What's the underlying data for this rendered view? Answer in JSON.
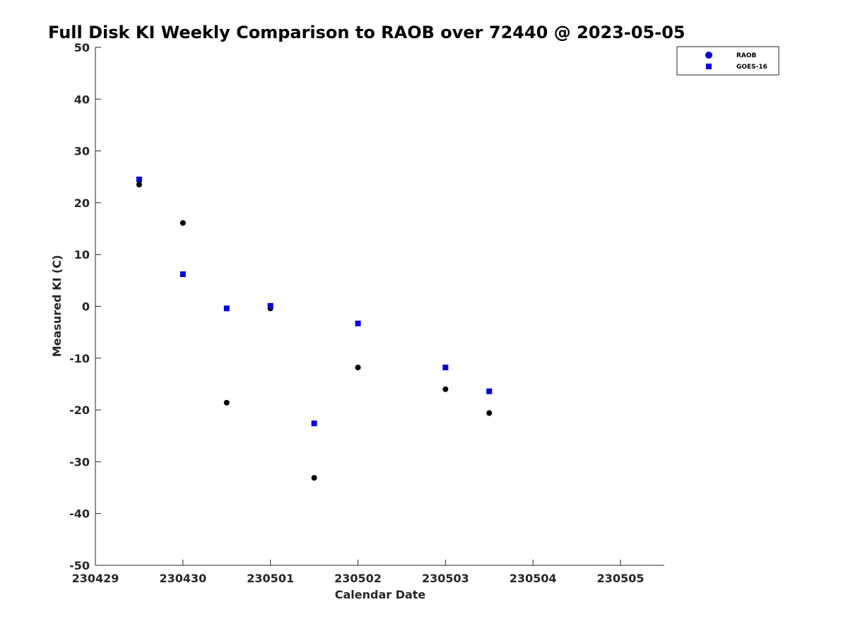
{
  "chart_data": {
    "type": "scatter",
    "title": "Full Disk KI Weekly Comparison to RAOB over 72440 @ 2023-05-05",
    "xlabel": "Calendar Date",
    "ylabel": "Measured KI (C)",
    "x_tick_labels": [
      "230429",
      "230430",
      "230501",
      "230502",
      "230503",
      "230504",
      "230505"
    ],
    "y_tick_labels": [
      "50",
      "40",
      "30",
      "20",
      "10",
      "0",
      "-10",
      "-20",
      "-30",
      "-40",
      "-50"
    ],
    "xlim": [
      "2023-04-29 00:00",
      "2023-05-05 12:00"
    ],
    "ylim": [
      -50,
      50
    ],
    "grid": false,
    "legend_position": "top-right",
    "series": [
      {
        "name": "RAOB",
        "marker": "circle",
        "color": "#000000",
        "points": [
          {
            "x": "2023-04-29 12:00",
            "y": 23.5
          },
          {
            "x": "2023-04-30 00:00",
            "y": 16.1
          },
          {
            "x": "2023-04-30 12:00",
            "y": -18.6
          },
          {
            "x": "2023-05-01 00:00",
            "y": -0.4
          },
          {
            "x": "2023-05-01 12:00",
            "y": -33.1
          },
          {
            "x": "2023-05-02 00:00",
            "y": -11.8
          },
          {
            "x": "2023-05-03 00:00",
            "y": -16.0
          },
          {
            "x": "2023-05-03 12:00",
            "y": -20.6
          }
        ]
      },
      {
        "name": "GOES-16",
        "marker": "square",
        "color": "#0000dd",
        "points": [
          {
            "x": "2023-04-29 12:00",
            "y": 24.5
          },
          {
            "x": "2023-04-30 00:00",
            "y": 6.2
          },
          {
            "x": "2023-04-30 12:00",
            "y": -0.4
          },
          {
            "x": "2023-05-01 00:00",
            "y": 0.1
          },
          {
            "x": "2023-05-01 12:00",
            "y": -22.6
          },
          {
            "x": "2023-05-02 00:00",
            "y": -3.3
          },
          {
            "x": "2023-05-03 00:00",
            "y": -11.8
          },
          {
            "x": "2023-05-03 12:00",
            "y": -16.4
          }
        ]
      }
    ],
    "legend": {
      "entries": [
        "RAOB",
        "GOES-16"
      ],
      "marker_color": "#0000dd"
    }
  }
}
